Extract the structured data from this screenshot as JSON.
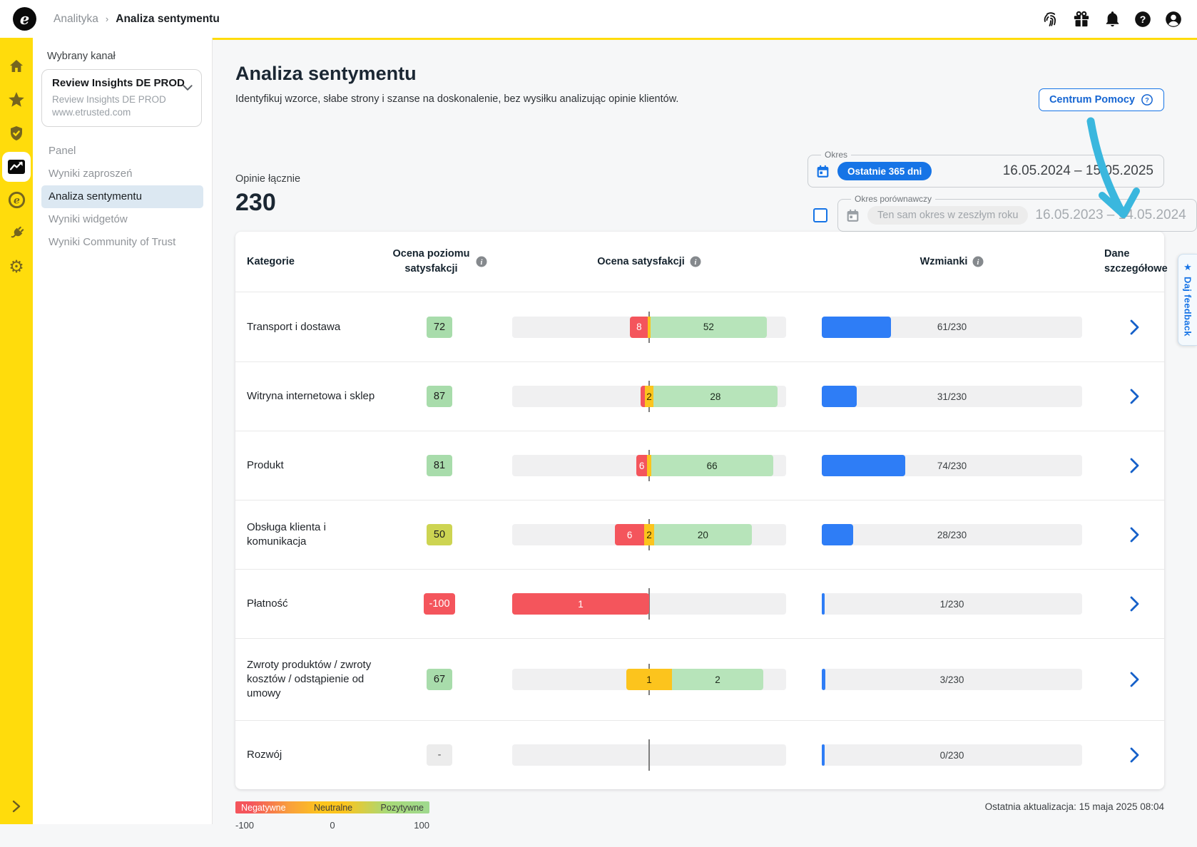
{
  "topbar": {
    "breadcrumb_section": "Analityka",
    "breadcrumb_separator": "›",
    "breadcrumb_page": "Analiza sentymentu",
    "logo_letter": "e",
    "icons": [
      "fingerprint",
      "gift",
      "notifications",
      "help",
      "account"
    ]
  },
  "rail": {
    "items": [
      "home",
      "star",
      "shield",
      "analytics",
      "etrusted",
      "integrations",
      "settings"
    ],
    "active_item": "analytics",
    "brand_yellow": "#FFDC0C"
  },
  "sidebar": {
    "label": "Wybrany kanał",
    "channel_name": "Review Insights DE PROD",
    "channel_sub1": "Review Insights DE PROD",
    "channel_sub2": "www.etrusted.com",
    "nav": [
      "Panel",
      "Wyniki zaproszeń",
      "Analiza sentymentu",
      "Wyniki widgetów",
      "Wyniki Community of Trust"
    ],
    "active_nav": "Analiza sentymentu"
  },
  "header": {
    "title": "Analiza sentymentu",
    "subtitle": "Identyfikuj wzorce, słabe strony i szanse na doskonalenie, bez wysiłku analizując opinie klientów.",
    "help_button": "Centrum Pomocy"
  },
  "summary": {
    "label": "Opinie łącznie",
    "value": "230"
  },
  "period": {
    "legend": "Okres",
    "preset": "Ostatnie 365 dni",
    "range": "16.05.2024 – 15.05.2025",
    "compare_legend": "Okres porównawczy",
    "compare_placeholder": "Ten sam okres w zeszłym roku",
    "compare_range": "16.05.2023 – 14.05.2024",
    "compare_checked": false
  },
  "table": {
    "col_category": "Kategorie",
    "col_score": "Ocena poziomu satysfakcji",
    "col_sentiment": "Ocena satysfakcji",
    "col_mentions": "Wzmianki",
    "col_details": "Dane szczegółowe",
    "total": 230,
    "rows": [
      {
        "category": "Transport i dostawa",
        "score": "72",
        "tone": "green",
        "neg": 8,
        "neu": 1,
        "pos": 52,
        "mentions": 61
      },
      {
        "category": "Witryna internetowa i sklep",
        "score": "87",
        "tone": "green",
        "neg": 1,
        "neu": 2,
        "pos": 28,
        "mentions": 31
      },
      {
        "category": "Produkt",
        "score": "81",
        "tone": "green",
        "neg": 6,
        "neu": 2,
        "pos": 66,
        "mentions": 74
      },
      {
        "category": "Obsługa klienta i komunikacja",
        "score": "50",
        "tone": "mid",
        "neg": 6,
        "neu": 2,
        "pos": 20,
        "mentions": 28
      },
      {
        "category": "Płatność",
        "score": "-100",
        "tone": "red",
        "neg": 1,
        "neu": 0,
        "pos": 0,
        "mentions": 1
      },
      {
        "category": "Zwroty produktów / zwroty kosztów / odstąpienie od umowy",
        "score": "67",
        "tone": "green",
        "neg": 0,
        "neu": 1,
        "pos": 2,
        "mentions": 3
      },
      {
        "category": "Rozwój",
        "score": "-",
        "tone": "none",
        "neg": 0,
        "neu": 0,
        "pos": 0,
        "mentions": 0
      }
    ],
    "colors": {
      "negative": "#F4555C",
      "neutral": "#FCC41D",
      "positive": "#B7E4BA",
      "mentions_bar": "#2E7DF6",
      "badge_green": "#A8DCAB",
      "badge_mid": "#CDD452"
    }
  },
  "legend": {
    "negative": "Negatywne",
    "neutral": "Neutralne",
    "positive": "Pozytywne",
    "scale_min": "-100",
    "scale_mid": "0",
    "scale_max": "100"
  },
  "footer": {
    "last_update": "Ostatnia aktualizacja: 15 maja 2025 08:04"
  },
  "feedback_tab": {
    "icon": "★",
    "label": "Daj feedback"
  },
  "annotation": {
    "arrow_color": "#3AB7DE",
    "accent_blue": "#1674E6"
  }
}
